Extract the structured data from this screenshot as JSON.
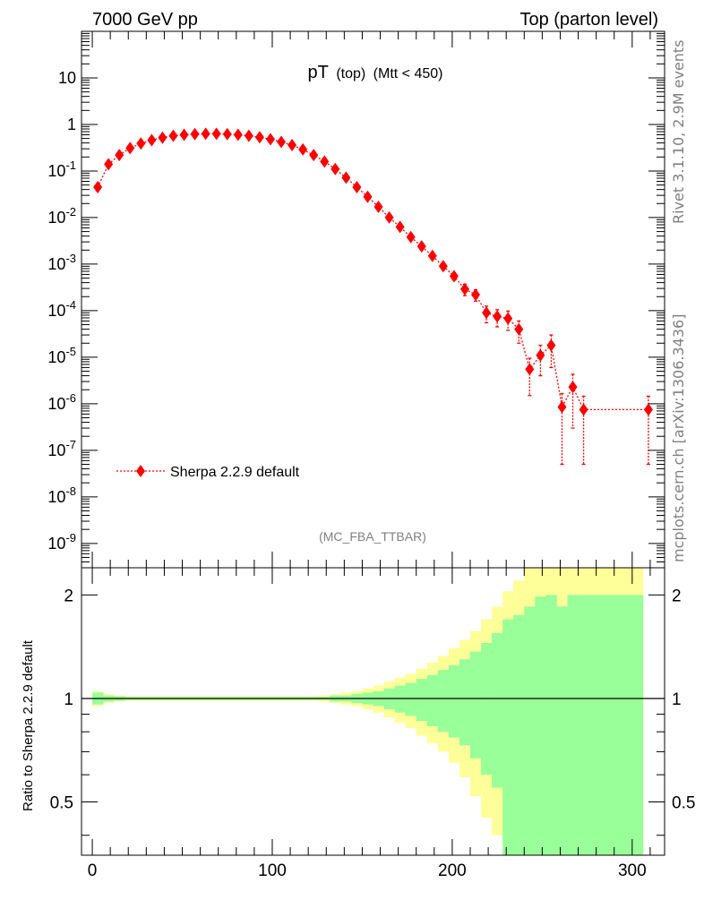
{
  "header": {
    "left": "7000 GeV pp",
    "right": "Top (parton level)"
  },
  "plot_title": {
    "main": "pT",
    "sub1": "(top)",
    "sub2": "(Mtt < 450)"
  },
  "analysis_tag": "(MC_FBA_TTBAR)",
  "side_labels": {
    "rivet": "Rivet 3.1.10,  2.9M events",
    "mcplots": "mcplots.cern.ch [arXiv:1306.3436]"
  },
  "legend": {
    "label": "Sherpa 2.2.9 default"
  },
  "colors": {
    "series": "#ff0000",
    "band_inner": "#99ff99",
    "band_outer": "#ffff99",
    "side_text": "#808080"
  },
  "chart_data": [
    {
      "type": "scatter",
      "title": "pT (top) (Mtt < 450)",
      "xlim": [
        -6,
        318
      ],
      "ylim": [
        3e-10,
        100
      ],
      "log_y": true,
      "y_ticks": [
        "10^-9",
        "10^-8",
        "10^-7",
        "10^-6",
        "10^-5",
        "10^-4",
        "10^-3",
        "10^-2",
        "10^-1",
        "1",
        "10"
      ],
      "series": [
        {
          "name": "Sherpa 2.2.9 default",
          "x": [
            3,
            9,
            15,
            21,
            27,
            33,
            39,
            45,
            51,
            57,
            63,
            69,
            75,
            81,
            87,
            93,
            99,
            105,
            111,
            117,
            123,
            129,
            135,
            141,
            147,
            153,
            159,
            165,
            171,
            177,
            183,
            189,
            195,
            201,
            207,
            213,
            219,
            225,
            231,
            237,
            243,
            249,
            255,
            261,
            267,
            273,
            309
          ],
          "y": [
            0.045,
            0.14,
            0.22,
            0.31,
            0.39,
            0.46,
            0.52,
            0.57,
            0.6,
            0.62,
            0.63,
            0.63,
            0.62,
            0.6,
            0.57,
            0.53,
            0.48,
            0.42,
            0.36,
            0.29,
            0.22,
            0.16,
            0.11,
            0.072,
            0.045,
            0.028,
            0.017,
            0.01,
            0.0063,
            0.0038,
            0.0024,
            0.0015,
            0.0009,
            0.00055,
            0.00029,
            0.00022,
            9e-05,
            7.5e-05,
            6.8e-05,
            4e-05,
            5.5e-06,
            1.1e-05,
            1.8e-05,
            8.5e-07,
            2.3e-06,
            7.5e-07,
            7.5e-07
          ],
          "y_err": [
            0,
            0,
            0,
            0,
            0,
            0,
            0,
            0,
            0,
            0,
            0,
            0,
            0,
            0,
            0,
            0,
            0,
            0,
            0,
            0,
            0,
            0,
            0,
            0,
            0,
            0,
            0,
            0,
            0,
            0,
            0.0003,
            0.0002,
            0.00015,
            0.0001,
            8e-05,
            6e-05,
            3.5e-05,
            3e-05,
            3e-05,
            2e-05,
            4e-06,
            7e-06,
            1.2e-05,
            8e-07,
            2e-06,
            7e-07,
            7e-07
          ]
        }
      ]
    },
    {
      "type": "area",
      "ylabel": "Ratio to Sherpa 2.2.9 default",
      "xlim": [
        -6,
        318
      ],
      "ylim": [
        0.35,
        2.4
      ],
      "log_y": true,
      "x_ticks": [
        0,
        100,
        200,
        300
      ],
      "y_ticks": [
        0.5,
        1,
        2
      ],
      "reference_line": 1,
      "bins": [
        0,
        6,
        12,
        18,
        24,
        30,
        36,
        42,
        48,
        54,
        60,
        66,
        72,
        78,
        84,
        90,
        96,
        102,
        108,
        114,
        120,
        126,
        132,
        138,
        144,
        150,
        156,
        162,
        168,
        174,
        180,
        186,
        192,
        198,
        204,
        210,
        216,
        222,
        228,
        234,
        240,
        246,
        252,
        258,
        264,
        270,
        276,
        306,
        312
      ],
      "series": [
        {
          "name": "inner",
          "lo": [
            0.96,
            0.98,
            0.985,
            0.99,
            0.99,
            0.99,
            0.99,
            0.99,
            0.99,
            0.99,
            0.99,
            0.99,
            0.99,
            0.99,
            0.99,
            0.99,
            0.99,
            0.99,
            0.99,
            0.99,
            0.99,
            0.99,
            0.98,
            0.98,
            0.97,
            0.96,
            0.95,
            0.93,
            0.91,
            0.89,
            0.86,
            0.83,
            0.8,
            0.77,
            0.73,
            0.67,
            0.6,
            0.55,
            0.35,
            0.35,
            0.35,
            0.35,
            0.35,
            0.35,
            0.35,
            0.35,
            0.35
          ],
          "hi": [
            1.04,
            1.02,
            1.015,
            1.01,
            1.01,
            1.01,
            1.01,
            1.01,
            1.01,
            1.01,
            1.01,
            1.01,
            1.01,
            1.01,
            1.01,
            1.01,
            1.01,
            1.01,
            1.01,
            1.01,
            1.01,
            1.01,
            1.02,
            1.02,
            1.03,
            1.04,
            1.05,
            1.07,
            1.09,
            1.11,
            1.14,
            1.17,
            1.21,
            1.25,
            1.3,
            1.37,
            1.45,
            1.55,
            1.7,
            1.75,
            1.85,
            1.98,
            2.0,
            1.85,
            2.0,
            2.0,
            2.0
          ]
        },
        {
          "name": "outer",
          "lo": [
            0.95,
            0.97,
            0.98,
            0.985,
            0.985,
            0.985,
            0.985,
            0.985,
            0.985,
            0.985,
            0.985,
            0.985,
            0.985,
            0.985,
            0.985,
            0.985,
            0.985,
            0.985,
            0.985,
            0.985,
            0.985,
            0.98,
            0.97,
            0.96,
            0.95,
            0.93,
            0.91,
            0.88,
            0.85,
            0.82,
            0.78,
            0.74,
            0.7,
            0.65,
            0.59,
            0.52,
            0.45,
            0.4,
            0.35,
            0.35,
            0.35,
            0.35,
            0.35,
            0.35,
            0.35,
            0.35,
            0.35
          ],
          "hi": [
            1.05,
            1.03,
            1.02,
            1.015,
            1.015,
            1.015,
            1.015,
            1.015,
            1.015,
            1.015,
            1.015,
            1.015,
            1.015,
            1.015,
            1.015,
            1.015,
            1.015,
            1.015,
            1.015,
            1.015,
            1.015,
            1.02,
            1.03,
            1.04,
            1.05,
            1.07,
            1.09,
            1.12,
            1.15,
            1.18,
            1.22,
            1.27,
            1.33,
            1.4,
            1.48,
            1.57,
            1.7,
            1.85,
            2.05,
            2.2,
            2.4,
            2.4,
            2.4,
            2.4,
            2.4,
            2.4,
            2.4
          ]
        }
      ]
    }
  ]
}
